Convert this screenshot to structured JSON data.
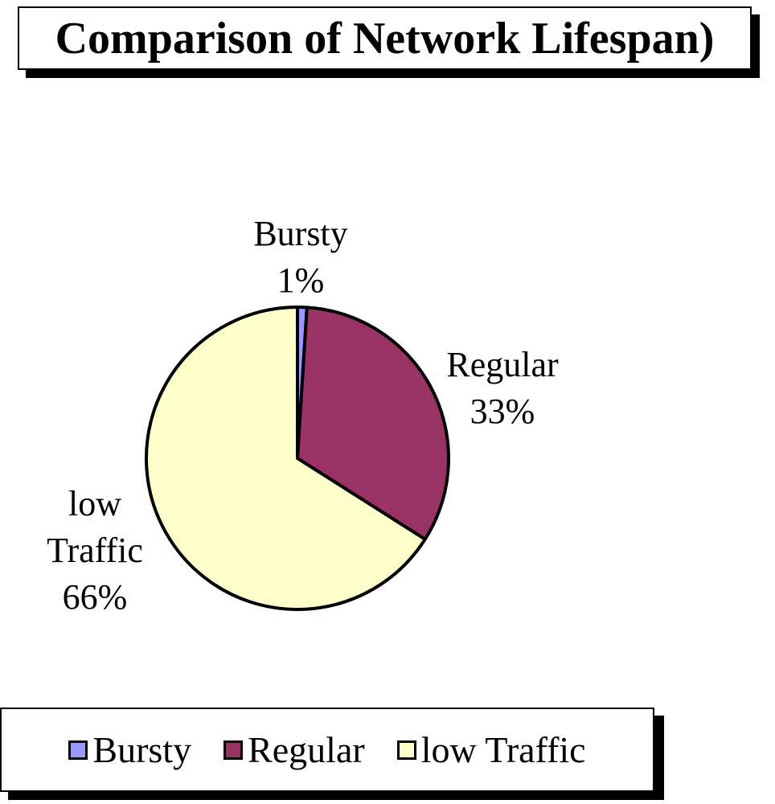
{
  "chart_data": {
    "type": "pie",
    "title": "Comparison of Network Lifespan)",
    "categories": [
      "Bursty",
      "Regular",
      "low Traffic"
    ],
    "values": [
      1,
      33,
      66
    ],
    "value_labels": [
      "1%",
      "33%",
      "66%"
    ],
    "colors": [
      "#9999ff",
      "#993366",
      "#ffffcc"
    ],
    "legend": "bottom"
  }
}
